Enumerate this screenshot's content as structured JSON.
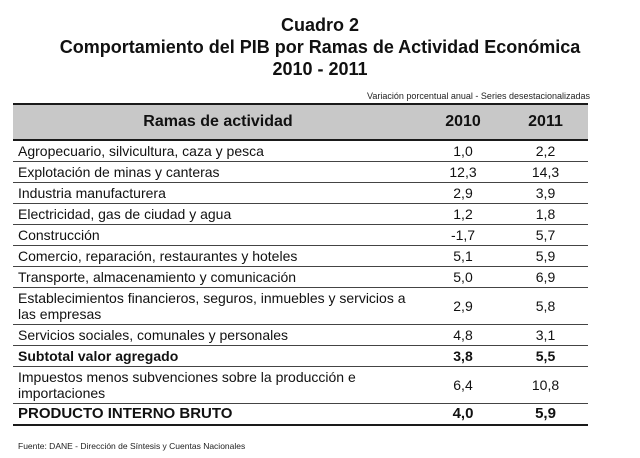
{
  "document": {
    "title_line1": "Cuadro 2",
    "title_line2": "Comportamiento del PIB por Ramas de Actividad Económica",
    "title_line3": "2010 - 2011",
    "subtitle": "Variación porcentual anual - Series desestacionalizadas",
    "source": "Fuente: DANE - Dirección de Síntesis y Cuentas Nacionales"
  },
  "table": {
    "headers": [
      "Ramas de actividad",
      "2010",
      "2011"
    ],
    "rows": [
      {
        "label": "Agropecuario, silvicultura, caza y pesca",
        "v2010": "1,0",
        "v2011": "2,2"
      },
      {
        "label": "Explotación de minas y canteras",
        "v2010": "12,3",
        "v2011": "14,3"
      },
      {
        "label": "Industria manufacturera",
        "v2010": "2,9",
        "v2011": "3,9"
      },
      {
        "label": "Electricidad, gas de ciudad y agua",
        "v2010": "1,2",
        "v2011": "1,8"
      },
      {
        "label": "Construcción",
        "v2010": "-1,7",
        "v2011": "5,7"
      },
      {
        "label": "Comercio, reparación, restaurantes y hoteles",
        "v2010": "5,1",
        "v2011": "5,9"
      },
      {
        "label": "Transporte, almacenamiento y comunicación",
        "v2010": "5,0",
        "v2011": "6,9"
      },
      {
        "label": "Establecimientos financieros, seguros, inmuebles y servicios a las empresas",
        "v2010": "2,9",
        "v2011": "5,8"
      },
      {
        "label": "Servicios sociales, comunales y personales",
        "v2010": "4,8",
        "v2011": "3,1"
      },
      {
        "label": "Subtotal valor agregado",
        "v2010": "3,8",
        "v2011": "5,5"
      },
      {
        "label": "Impuestos menos subvenciones sobre la producción e importaciones",
        "v2010": "6,4",
        "v2011": "10,8"
      },
      {
        "label": "PRODUCTO INTERNO BRUTO",
        "v2010": "4,0",
        "v2011": "5,9"
      }
    ]
  }
}
